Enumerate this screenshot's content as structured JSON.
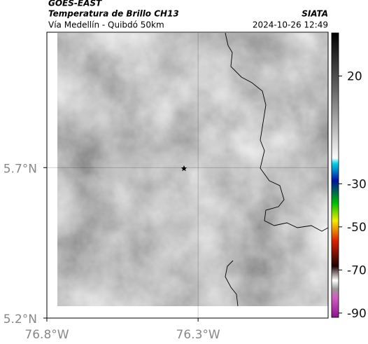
{
  "header": {
    "title": "GOES-EAST",
    "subtitle": "Temperatura de Brillo CH13",
    "location": "Vía Medellín - Quibdó 50km",
    "source": "SIATA",
    "datetime": "2024-10-26 12:49"
  },
  "map": {
    "latlim": [
      5.2,
      6.15
    ],
    "lonlim": [
      -76.8,
      -75.87
    ],
    "lat_ticks": [
      {
        "value": 5.7,
        "label": "5.7°N"
      },
      {
        "value": 5.2,
        "label": "5.2°N"
      }
    ],
    "lon_ticks": [
      {
        "value": -76.8,
        "label": "76.8°W"
      },
      {
        "value": -76.3,
        "label": "76.3°W"
      }
    ]
  },
  "colorbar": {
    "lim": [
      -92,
      40
    ],
    "ticks": [
      20,
      -30,
      -50,
      -70,
      -90
    ]
  }
}
